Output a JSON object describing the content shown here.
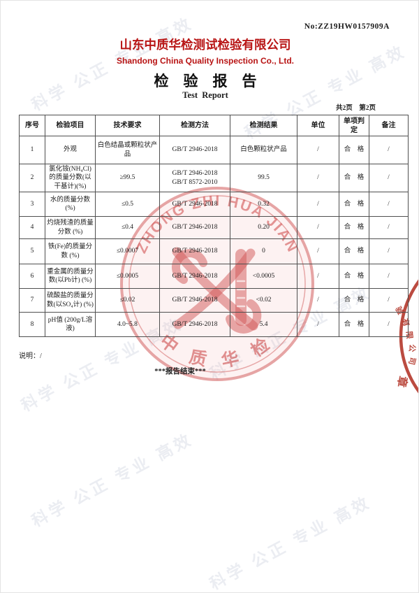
{
  "page": {
    "report_no": "No:ZZ19HW0157909A",
    "company_cn": "山东中质华检测试检验有限公司",
    "company_en": "Shandong China Quality Inspection Co., Ltd.",
    "title_cn": "检　验　报　告",
    "title_en": "Test  Report",
    "pagination": "共2页　第2页",
    "note": "说明：/",
    "end_text": "***报告结束***"
  },
  "colors": {
    "accent_red": "#b81414",
    "seal_red": "#cf5b5b",
    "stamp_red": "#b23226",
    "watermark_gray": "#b6c0d2"
  },
  "watermark": {
    "text": "科学 公正 专业 高效"
  },
  "seal": {
    "arc_text": "ZHONG ZHI HUA JIAN",
    "bottom_text": "中 质 华 检"
  },
  "edge_stamp": {
    "chars": [
      "验",
      "有",
      "限",
      "公",
      "司"
    ],
    "big_char": "章"
  },
  "table": {
    "headers": [
      "序号",
      "检验项目",
      "技术要求",
      "检测方法",
      "检测结果",
      "单位",
      "单项判定",
      "备注"
    ],
    "rows": [
      [
        "1",
        "外观",
        "白色结晶或颗粒状产品",
        "GB/T 2946-2018",
        "白色颗粒状产品",
        "/",
        "合　格",
        "/"
      ],
      [
        "2",
        "氯化铵(NH₄Cl)的质量分数(以干基计)(%)",
        "≥99.5",
        "GB/T 2946-2018\nGB/T 8572-2010",
        "99.5",
        "/",
        "合　格",
        "/"
      ],
      [
        "3",
        "水的质量分数 (%)",
        "≤0.5",
        "GB/T 2946-2018",
        "0.32",
        "/",
        "合　格",
        "/"
      ],
      [
        "4",
        "灼烧残渣的质量分数 (%)",
        "≤0.4",
        "GB/T 2946-2018",
        "0.20",
        "/",
        "合　格",
        "/"
      ],
      [
        "5",
        "铁(Fe)的质量分数 (%)",
        "≤0.0007",
        "GB/T 2946-2018",
        "0",
        "/",
        "合　格",
        "/"
      ],
      [
        "6",
        "重金属的质量分数(以Pb计) (%)",
        "≤0.0005",
        "GB/T 2946-2018",
        "<0.0005",
        "/",
        "合　格",
        "/"
      ],
      [
        "7",
        "硫酸盐的质量分数(以SO₄计) (%)",
        "≤0.02",
        "GB/T 2946-2018",
        "<0.02",
        "/",
        "合　格",
        "/"
      ],
      [
        "8",
        "pH值 (200g/L溶液)",
        "4.0~5.8",
        "GB/T 2946-2018",
        "5.4",
        "/",
        "合　格",
        "/"
      ]
    ]
  }
}
